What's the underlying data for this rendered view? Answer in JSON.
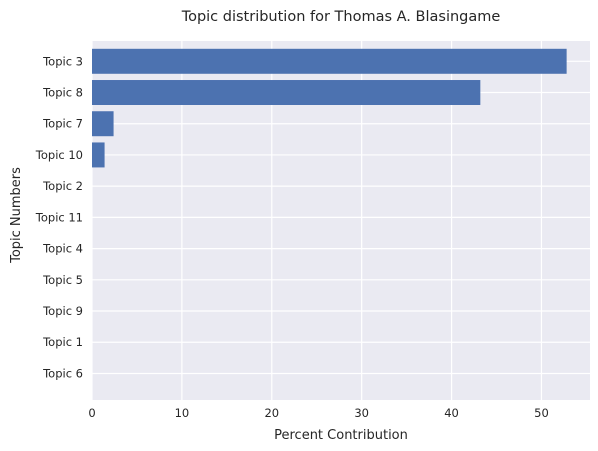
{
  "chart_data": {
    "type": "bar",
    "orientation": "horizontal",
    "title": "Topic distribution for Thomas A. Blasingame",
    "xlabel": "Percent Contribution",
    "ylabel": "Topic Numbers",
    "categories": [
      "Topic 3",
      "Topic 8",
      "Topic 7",
      "Topic 10",
      "Topic 2",
      "Topic 11",
      "Topic 4",
      "Topic 5",
      "Topic 9",
      "Topic 1",
      "Topic 6"
    ],
    "values": [
      52.8,
      43.2,
      2.4,
      1.4,
      0,
      0,
      0,
      0,
      0,
      0,
      0
    ],
    "xlim": [
      0,
      55.4
    ],
    "xticks": [
      0,
      10,
      20,
      30,
      40,
      50
    ],
    "grid": true,
    "colors": {
      "bar": "#4c72b0",
      "plot_background": "#eaeaf2",
      "grid": "#ffffff",
      "text": "#262626"
    }
  }
}
